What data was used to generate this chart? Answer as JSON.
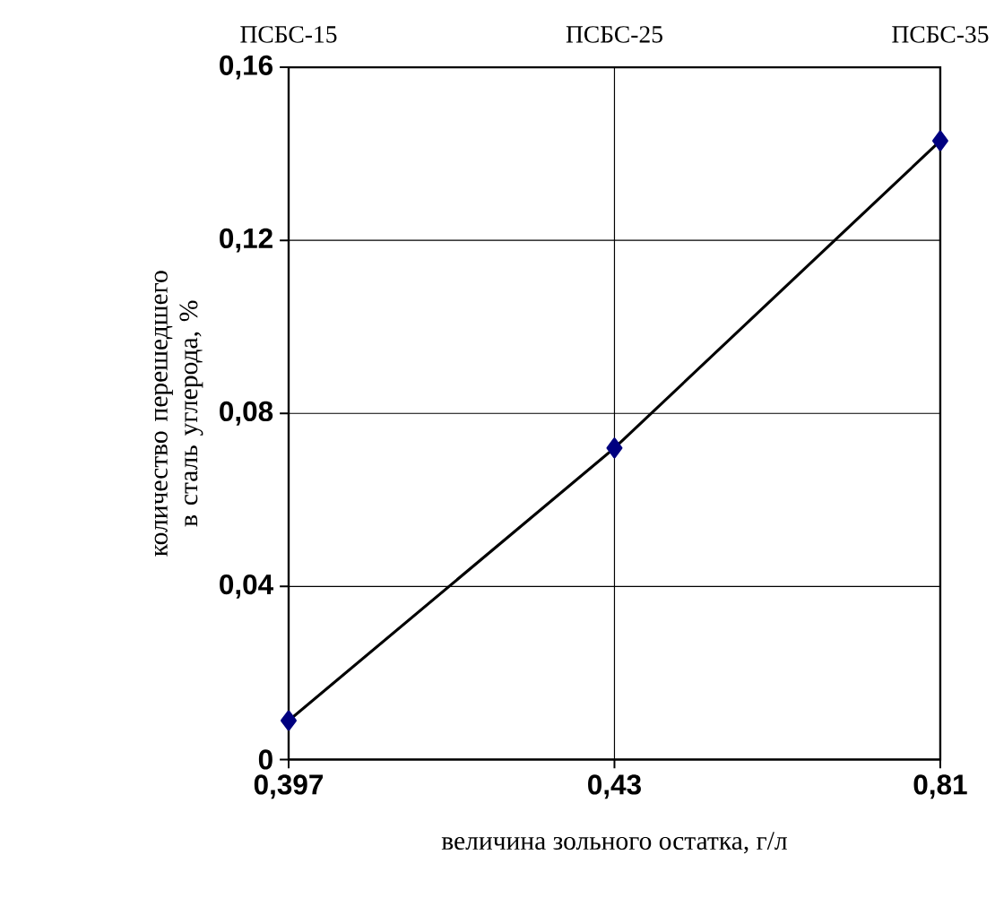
{
  "chart_data": {
    "type": "line",
    "xlabel": "величина зольного остатка, г/л",
    "ylabel": "количество перешедшего в сталь углерода, %",
    "categories": [
      "0,397",
      "0,43",
      "0,81"
    ],
    "series": [
      {
        "color": "#000080",
        "values": [
          0.009,
          0.072,
          0.143
        ]
      }
    ],
    "ylim": [
      0,
      0.16
    ],
    "yticks": [
      {
        "value": 0,
        "label": "0"
      },
      {
        "value": 0.04,
        "label": "0,04"
      },
      {
        "value": 0.08,
        "label": "0,08"
      },
      {
        "value": 0.12,
        "label": "0,12"
      },
      {
        "value": 0.16,
        "label": "0,16"
      }
    ],
    "annotations": [
      "ПСБС-15",
      "ПСБС-25",
      "ПСБС-35"
    ],
    "grid": true,
    "marker": "diamond",
    "line_style": "solid"
  }
}
